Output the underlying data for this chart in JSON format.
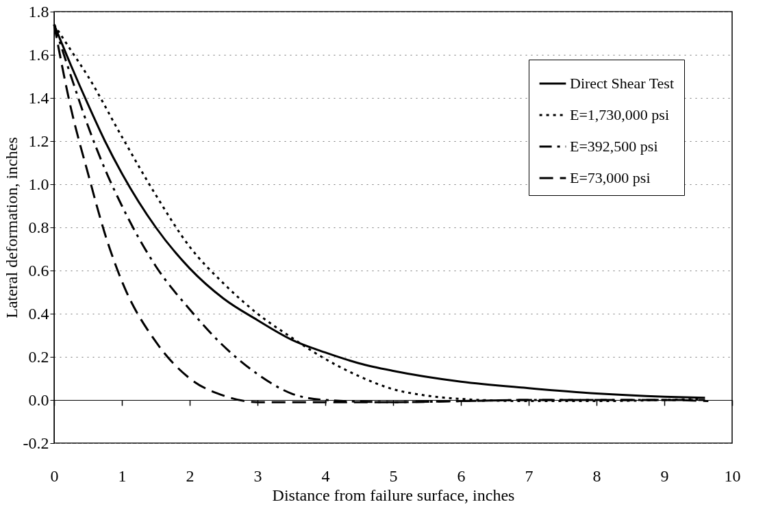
{
  "chart_data": {
    "type": "line",
    "xlabel": "Distance from failure surface, inches",
    "ylabel": "Lateral deformation, inches",
    "xlim": [
      0,
      10
    ],
    "xticks": [
      0,
      1,
      2,
      3,
      4,
      5,
      6,
      7,
      8,
      9,
      10
    ],
    "ylim": [
      -0.2,
      1.8
    ],
    "yticks": [
      -0.2,
      {
        "value": 0,
        "label": "0.0"
      },
      0.2,
      0.4,
      0.6,
      0.8,
      {
        "value": 1,
        "label": "1.0"
      },
      1.2,
      1.4,
      1.6,
      1.8
    ],
    "grid": "y",
    "legend": "top right",
    "series": [
      {
        "name": "Direct Shear Test",
        "color": "#000000",
        "line_style": "solid",
        "x": [
          0,
          0.25,
          0.5,
          0.75,
          1,
          1.5,
          2,
          2.5,
          3,
          3.5,
          4,
          4.5,
          5,
          6,
          7,
          8,
          9,
          9.6
        ],
        "values": [
          1.74,
          1.55,
          1.37,
          1.2,
          1.05,
          0.8,
          0.61,
          0.47,
          0.37,
          0.28,
          0.22,
          0.17,
          0.135,
          0.085,
          0.055,
          0.03,
          0.015,
          0.01
        ]
      },
      {
        "name": "E=1,730,000 psi",
        "color": "#000000",
        "line_style": "dotted",
        "x": [
          0,
          0.25,
          0.5,
          1,
          1.5,
          2,
          2.5,
          3,
          3.5,
          4,
          4.5,
          5,
          5.5,
          6,
          7,
          8,
          9,
          9.55
        ],
        "values": [
          1.74,
          1.62,
          1.5,
          1.22,
          0.95,
          0.71,
          0.54,
          0.4,
          0.29,
          0.19,
          0.11,
          0.05,
          0.02,
          0.005,
          -0.005,
          -0.005,
          0,
          0.005
        ]
      },
      {
        "name": "E=392,500 psi",
        "color": "#000000",
        "line_style": "dashed",
        "x": [
          0,
          0.25,
          0.5,
          0.75,
          1,
          1.5,
          2,
          2.5,
          3,
          3.5,
          4,
          5,
          6,
          7,
          8,
          9,
          9.6
        ],
        "values": [
          1.74,
          1.5,
          1.27,
          1.07,
          0.9,
          0.62,
          0.42,
          0.25,
          0.12,
          0.03,
          0,
          -0.01,
          -0.005,
          0,
          0,
          0,
          0
        ]
      },
      {
        "name": "E=73,000 psi",
        "color": "#000000",
        "line_style": "dashed",
        "x": [
          0,
          0.25,
          0.5,
          0.75,
          1,
          1.5,
          2,
          2.5,
          3,
          3.5,
          4,
          5,
          6,
          7,
          8,
          9,
          9.65
        ],
        "values": [
          1.74,
          1.35,
          1.05,
          0.77,
          0.55,
          0.27,
          0.1,
          0.02,
          -0.01,
          -0.01,
          -0.01,
          -0.01,
          -0.005,
          0,
          0,
          0,
          -0.005
        ]
      }
    ]
  }
}
